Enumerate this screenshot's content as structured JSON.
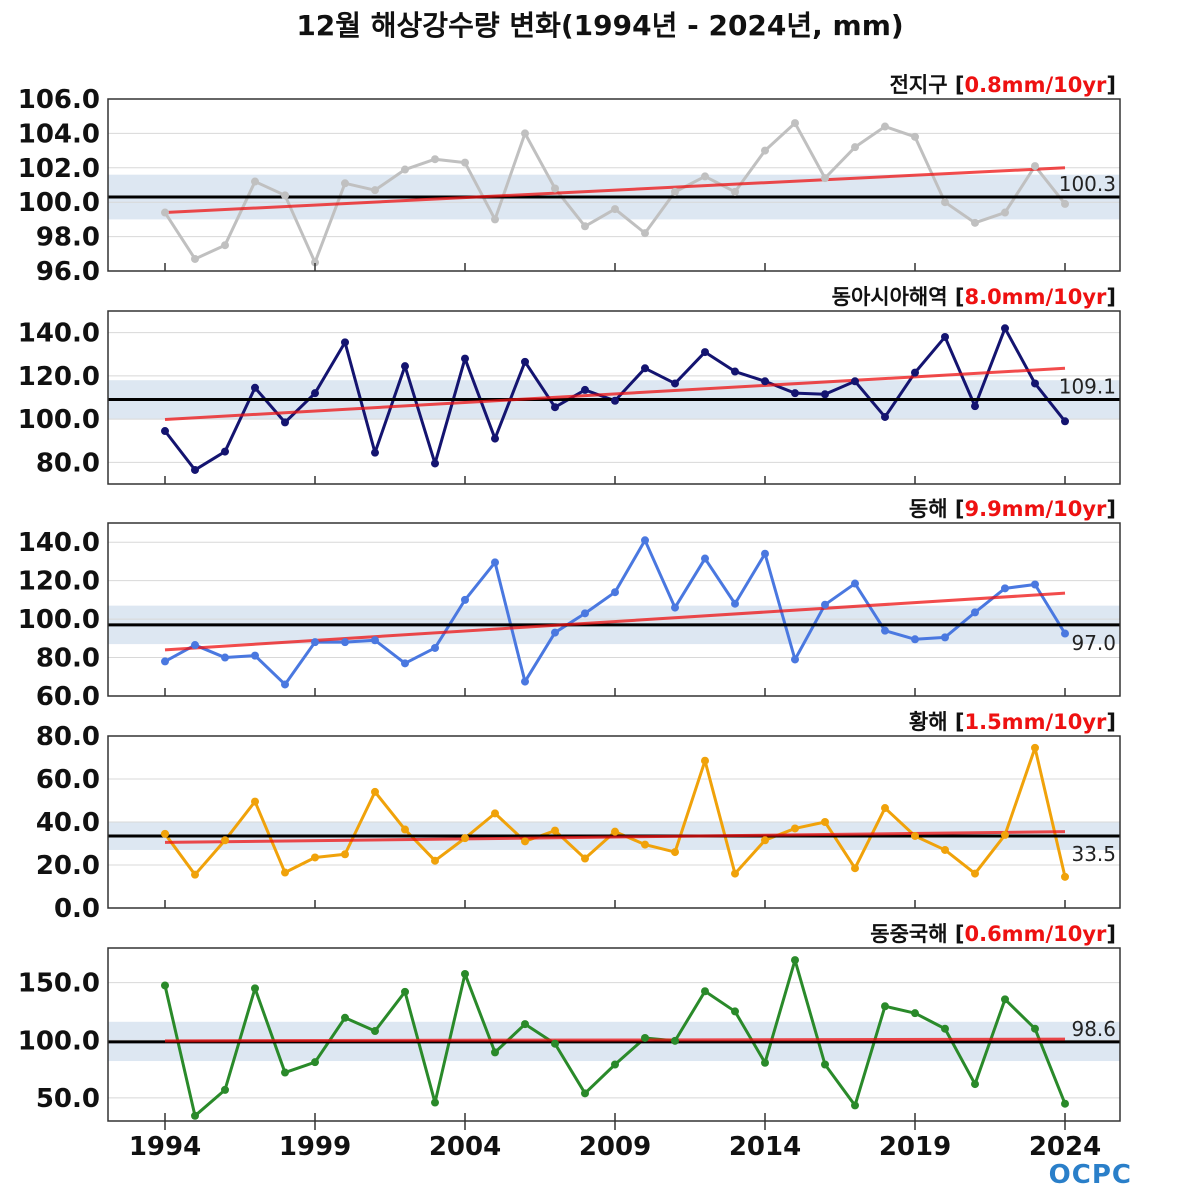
{
  "title": "12월 해상강수량 변화(1994년 - 2024년, mm)",
  "logo": "OCPC",
  "years_ticks": [
    1994,
    1999,
    2004,
    2009,
    2014,
    2019,
    2024
  ],
  "colors": {
    "mean_line": "#000000",
    "trend_line": "#ee1111",
    "band": "#dde7f2",
    "trend_text": "#ee1111"
  },
  "chart_data": [
    {
      "type": "line",
      "region": "전지구",
      "trend_label": "0.8mm/10yr",
      "color": "#c0c0c0",
      "mean": 100.3,
      "mean_label": "100.3",
      "band": [
        99.0,
        101.6
      ],
      "trend": [
        99.4,
        102.0
      ],
      "ylim": [
        96.0,
        106.0
      ],
      "yticks": [
        96.0,
        98.0,
        100.0,
        102.0,
        104.0,
        106.0
      ],
      "ytick_labels": [
        "96.0",
        "98.0",
        "100.0",
        "102.0",
        "104.0",
        "106.0"
      ],
      "x": [
        1994,
        1995,
        1996,
        1997,
        1998,
        1999,
        2000,
        2001,
        2002,
        2003,
        2004,
        2005,
        2006,
        2007,
        2008,
        2009,
        2010,
        2011,
        2012,
        2013,
        2014,
        2015,
        2016,
        2017,
        2018,
        2019,
        2020,
        2021,
        2022,
        2023,
        2024
      ],
      "values": [
        99.4,
        96.7,
        97.5,
        101.2,
        100.4,
        96.5,
        101.1,
        100.7,
        101.9,
        102.5,
        102.3,
        99.0,
        104.0,
        100.8,
        98.6,
        99.6,
        98.2,
        100.6,
        101.5,
        100.6,
        103.0,
        104.6,
        101.4,
        103.2,
        104.4,
        103.8,
        100.0,
        98.8,
        99.4,
        102.1,
        99.9
      ]
    },
    {
      "type": "line",
      "region": "동아시아해역",
      "trend_label": "8.0mm/10yr",
      "color": "#141470",
      "mean": 109.1,
      "mean_label": "109.1",
      "band": [
        100.0,
        118.0
      ],
      "trend": [
        99.8,
        123.5
      ],
      "ylim": [
        70.0,
        150.0
      ],
      "yticks": [
        80.0,
        100.0,
        120.0,
        140.0
      ],
      "ytick_labels": [
        "80.0",
        "100.0",
        "120.0",
        "140.0"
      ],
      "x": [
        1994,
        1995,
        1996,
        1997,
        1998,
        1999,
        2000,
        2001,
        2002,
        2003,
        2004,
        2005,
        2006,
        2007,
        2008,
        2009,
        2010,
        2011,
        2012,
        2013,
        2014,
        2015,
        2016,
        2017,
        2018,
        2019,
        2020,
        2021,
        2022,
        2023,
        2024
      ],
      "values": [
        94.5,
        76.5,
        85.0,
        114.5,
        98.5,
        112.0,
        135.5,
        84.5,
        124.5,
        79.5,
        128.0,
        91.0,
        126.5,
        105.5,
        113.5,
        108.5,
        123.5,
        116.5,
        131.0,
        122.0,
        117.5,
        112.0,
        111.5,
        117.5,
        101.0,
        121.5,
        138.0,
        106.0,
        142.0,
        116.5,
        99.0
      ]
    },
    {
      "type": "line",
      "region": "동해",
      "trend_label": "9.9mm/10yr",
      "color": "#4a78e0",
      "mean": 97.0,
      "mean_label": "97.0",
      "band": [
        87.0,
        107.0
      ],
      "trend": [
        84.0,
        113.5
      ],
      "ylim": [
        60.0,
        150.0
      ],
      "yticks": [
        60.0,
        80.0,
        100.0,
        120.0,
        140.0
      ],
      "ytick_labels": [
        "60.0",
        "80.0",
        "100.0",
        "120.0",
        "140.0"
      ],
      "x": [
        1994,
        1995,
        1996,
        1997,
        1998,
        1999,
        2000,
        2001,
        2002,
        2003,
        2004,
        2005,
        2006,
        2007,
        2008,
        2009,
        2010,
        2011,
        2012,
        2013,
        2014,
        2015,
        2016,
        2017,
        2018,
        2019,
        2020,
        2021,
        2022,
        2023,
        2024
      ],
      "values": [
        78.0,
        86.5,
        80.0,
        81.0,
        66.0,
        88.0,
        88.0,
        89.0,
        77.0,
        85.0,
        110.0,
        129.5,
        67.5,
        93.0,
        103.0,
        114.0,
        141.0,
        106.0,
        131.5,
        108.0,
        134.0,
        79.0,
        107.5,
        118.5,
        94.0,
        89.5,
        90.5,
        103.5,
        116.0,
        118.0,
        92.5
      ]
    },
    {
      "type": "line",
      "region": "황해",
      "trend_label": "1.5mm/10yr",
      "color": "#f0a20a",
      "mean": 33.5,
      "mean_label": "33.5",
      "band": [
        27.0,
        40.0
      ],
      "trend": [
        30.5,
        35.5
      ],
      "ylim": [
        0.0,
        80.0
      ],
      "yticks": [
        0.0,
        20.0,
        40.0,
        60.0,
        80.0
      ],
      "ytick_labels": [
        "0.0",
        "20.0",
        "40.0",
        "60.0",
        "80.0"
      ],
      "x": [
        1994,
        1995,
        1996,
        1997,
        1998,
        1999,
        2000,
        2001,
        2002,
        2003,
        2004,
        2005,
        2006,
        2007,
        2008,
        2009,
        2010,
        2011,
        2012,
        2013,
        2014,
        2015,
        2016,
        2017,
        2018,
        2019,
        2020,
        2021,
        2022,
        2023,
        2024
      ],
      "values": [
        34.5,
        15.5,
        31.5,
        49.5,
        16.5,
        23.5,
        25.0,
        54.0,
        36.5,
        22.0,
        32.5,
        44.0,
        31.0,
        36.0,
        23.0,
        35.5,
        29.5,
        26.0,
        68.5,
        16.0,
        31.5,
        37.0,
        40.0,
        18.5,
        46.5,
        33.5,
        27.0,
        16.0,
        34.0,
        74.5,
        14.5
      ]
    },
    {
      "type": "line",
      "region": "동중국해",
      "trend_label": "0.6mm/10yr",
      "color": "#2a8a2a",
      "mean": 98.6,
      "mean_label": "98.6",
      "band": [
        82.0,
        116.0
      ],
      "trend": [
        99.5,
        101.0
      ],
      "ylim": [
        30.0,
        180.0
      ],
      "yticks": [
        50.0,
        100.0,
        150.0
      ],
      "ytick_labels": [
        "50.0",
        "100.0",
        "150.0"
      ],
      "x": [
        1994,
        1995,
        1996,
        1997,
        1998,
        1999,
        2000,
        2001,
        2002,
        2003,
        2004,
        2005,
        2006,
        2007,
        2008,
        2009,
        2010,
        2011,
        2012,
        2013,
        2014,
        2015,
        2016,
        2017,
        2018,
        2019,
        2020,
        2021,
        2022,
        2023,
        2024
      ],
      "values": [
        147.5,
        34.5,
        57.0,
        145.0,
        72.0,
        81.0,
        119.5,
        108.0,
        142.0,
        46.0,
        157.5,
        89.5,
        114.0,
        97.0,
        54.0,
        79.0,
        102.0,
        99.5,
        142.5,
        125.0,
        80.5,
        169.5,
        79.0,
        43.5,
        129.5,
        123.5,
        110.0,
        62.0,
        135.5,
        110.0,
        45.0
      ]
    }
  ]
}
